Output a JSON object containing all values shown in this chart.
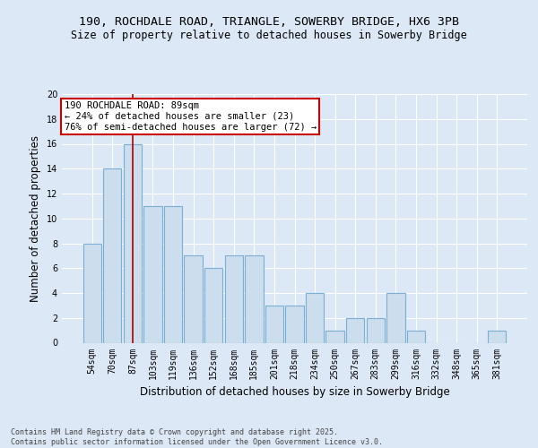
{
  "title_line1": "190, ROCHDALE ROAD, TRIANGLE, SOWERBY BRIDGE, HX6 3PB",
  "title_line2": "Size of property relative to detached houses in Sowerby Bridge",
  "xlabel": "Distribution of detached houses by size in Sowerby Bridge",
  "ylabel": "Number of detached properties",
  "footer": "Contains HM Land Registry data © Crown copyright and database right 2025.\nContains public sector information licensed under the Open Government Licence v3.0.",
  "categories": [
    "54sqm",
    "70sqm",
    "87sqm",
    "103sqm",
    "119sqm",
    "136sqm",
    "152sqm",
    "168sqm",
    "185sqm",
    "201sqm",
    "218sqm",
    "234sqm",
    "250sqm",
    "267sqm",
    "283sqm",
    "299sqm",
    "316sqm",
    "332sqm",
    "348sqm",
    "365sqm",
    "381sqm"
  ],
  "values": [
    8,
    14,
    16,
    11,
    11,
    7,
    6,
    7,
    7,
    3,
    3,
    4,
    1,
    2,
    2,
    4,
    1,
    0,
    0,
    0,
    1
  ],
  "bar_color": "#ccdded",
  "bar_edge_color": "#7bafd4",
  "vline_x_index": 2,
  "vline_color": "#aa0000",
  "annotation_text": "190 ROCHDALE ROAD: 89sqm\n← 24% of detached houses are smaller (23)\n76% of semi-detached houses are larger (72) →",
  "annotation_box_color": "#ffffff",
  "annotation_box_edge": "#cc0000",
  "ylim": [
    0,
    20
  ],
  "yticks": [
    0,
    2,
    4,
    6,
    8,
    10,
    12,
    14,
    16,
    18,
    20
  ],
  "bg_color": "#dce8f5",
  "plot_bg_color": "#dce8f5",
  "grid_color": "#ffffff",
  "title_fontsize": 9.5,
  "subtitle_fontsize": 8.5,
  "tick_fontsize": 7,
  "ylabel_fontsize": 8.5,
  "xlabel_fontsize": 8.5,
  "footer_fontsize": 6,
  "annotation_fontsize": 7.5
}
